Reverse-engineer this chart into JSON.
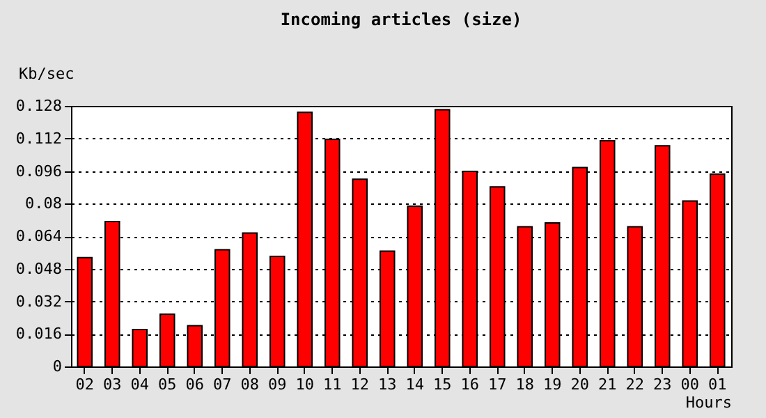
{
  "chart_data": {
    "type": "bar",
    "title": "Incoming articles (size)",
    "xlabel": "Hours",
    "ylabel": "Kb/sec",
    "categories": [
      "02",
      "03",
      "04",
      "05",
      "06",
      "07",
      "08",
      "09",
      "10",
      "11",
      "12",
      "13",
      "14",
      "15",
      "16",
      "17",
      "18",
      "19",
      "20",
      "21",
      "22",
      "23",
      "00",
      "01"
    ],
    "values": [
      0.0535,
      0.0712,
      0.0181,
      0.0257,
      0.02,
      0.0573,
      0.0655,
      0.0541,
      0.1248,
      0.1116,
      0.092,
      0.0566,
      0.0787,
      0.1261,
      0.0958,
      0.0882,
      0.0686,
      0.0705,
      0.0977,
      0.1109,
      0.0686,
      0.1084,
      0.0813,
      0.0945
    ],
    "color": "#ff0000",
    "ylim": [
      0,
      0.128
    ],
    "yticks": [
      0,
      0.016,
      0.032,
      0.048,
      0.064,
      0.08,
      0.096,
      0.112,
      0.128
    ],
    "grid": "y"
  }
}
